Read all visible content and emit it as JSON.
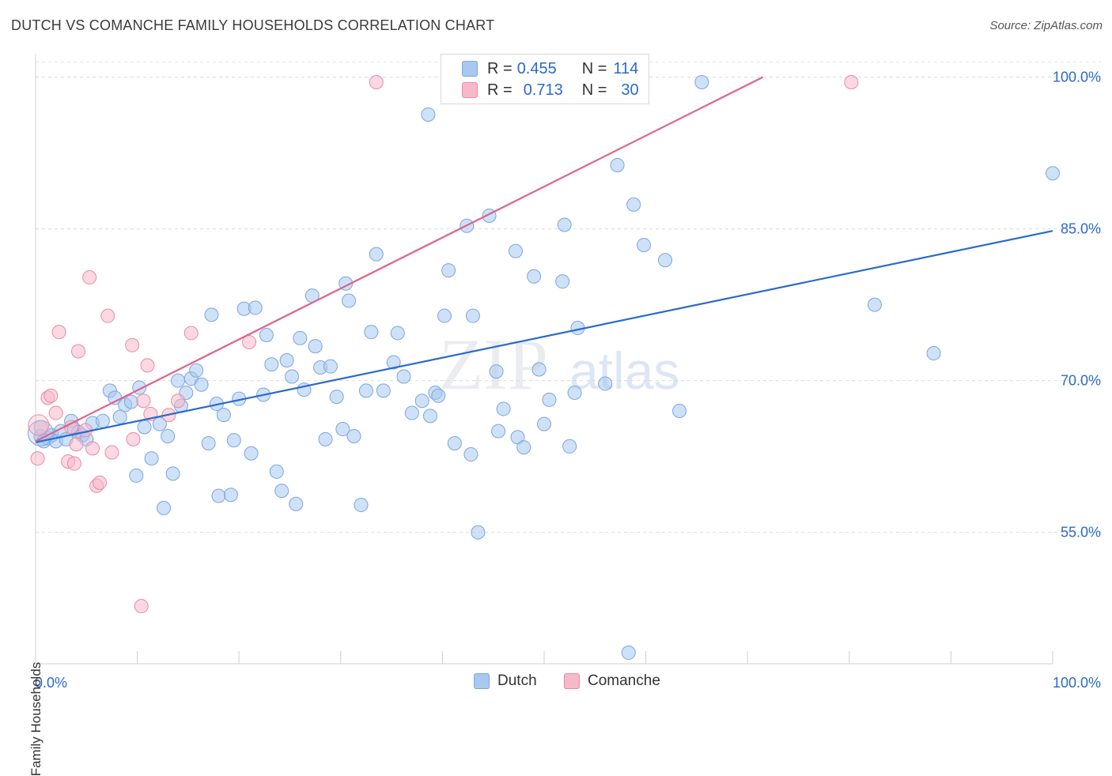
{
  "title": "DUTCH VS COMANCHE FAMILY HOUSEHOLDS CORRELATION CHART",
  "source": "Source: ZipAtlas.com",
  "watermark": {
    "zip": "ZIP",
    "atlas": "atlas"
  },
  "legend": {
    "rows": [
      {
        "r_label": "R = ",
        "r_value": "0.455",
        "n_label": "N = ",
        "n_value": "114",
        "color": "#a8c8f0",
        "border": "#7aa6de"
      },
      {
        "r_label": "R = ",
        "r_value": "0.713",
        "n_label": "N = ",
        "n_value": "30",
        "color": "#f7b8ca",
        "border": "#e98aa6"
      }
    ]
  },
  "bottom_legend": [
    {
      "label": "Dutch",
      "color": "#a8c8f0",
      "border": "#7aa6de"
    },
    {
      "label": "Comanche",
      "color": "#f7b8ca",
      "border": "#e98aa6"
    }
  ],
  "chart_data": {
    "type": "scatter",
    "title": "DUTCH VS COMANCHE FAMILY HOUSEHOLDS CORRELATION CHART",
    "xlabel": "",
    "ylabel": "Family Households",
    "xlim": [
      0,
      100
    ],
    "ylim": [
      42,
      102
    ],
    "x_tick_labels": [
      "0.0%",
      "100.0%"
    ],
    "y_ticks": [
      55,
      70,
      85,
      100
    ],
    "y_tick_labels": [
      "55.0%",
      "70.0%",
      "85.0%",
      "100.0%"
    ],
    "grid": true,
    "legend_position": "top-center",
    "series": [
      {
        "name": "Dutch",
        "color": "#a8c8f0",
        "stroke": "#7aa6de",
        "trend": {
          "x0": 0,
          "y0": 63.9,
          "x1": 100,
          "y1": 84.8,
          "color": "#2a6acb"
        },
        "points": [
          [
            0.5,
            64.5
          ],
          [
            0.8,
            64.0
          ],
          [
            1.2,
            64.3
          ],
          [
            1.6,
            64.6
          ],
          [
            2.0,
            64.0
          ],
          [
            2.5,
            65.0
          ],
          [
            3.0,
            64.2
          ],
          [
            3.5,
            66.0
          ],
          [
            3.8,
            65.2
          ],
          [
            4.2,
            64.9
          ],
          [
            4.6,
            64.6
          ],
          [
            5.0,
            64.2
          ],
          [
            5.6,
            65.8
          ],
          [
            6.6,
            66.0
          ],
          [
            7.3,
            69.0
          ],
          [
            7.8,
            68.3
          ],
          [
            8.3,
            66.4
          ],
          [
            8.8,
            67.6
          ],
          [
            9.4,
            67.9
          ],
          [
            9.9,
            60.6
          ],
          [
            10.2,
            69.3
          ],
          [
            10.7,
            65.4
          ],
          [
            11.4,
            62.3
          ],
          [
            12.2,
            65.7
          ],
          [
            12.6,
            57.4
          ],
          [
            13.0,
            64.5
          ],
          [
            13.5,
            60.8
          ],
          [
            14.0,
            70.0
          ],
          [
            14.3,
            67.5
          ],
          [
            14.8,
            68.8
          ],
          [
            15.3,
            70.2
          ],
          [
            15.8,
            71.0
          ],
          [
            16.3,
            69.6
          ],
          [
            17.0,
            63.8
          ],
          [
            17.3,
            76.5
          ],
          [
            17.8,
            67.7
          ],
          [
            18.5,
            66.6
          ],
          [
            18.0,
            58.6
          ],
          [
            19.2,
            58.7
          ],
          [
            19.5,
            64.1
          ],
          [
            20.0,
            68.2
          ],
          [
            20.5,
            77.1
          ],
          [
            21.2,
            62.8
          ],
          [
            21.6,
            77.2
          ],
          [
            22.4,
            68.6
          ],
          [
            22.7,
            74.5
          ],
          [
            23.2,
            71.6
          ],
          [
            23.7,
            61.0
          ],
          [
            24.2,
            59.1
          ],
          [
            24.7,
            72.0
          ],
          [
            25.2,
            70.4
          ],
          [
            25.6,
            57.8
          ],
          [
            26.0,
            74.2
          ],
          [
            26.4,
            69.1
          ],
          [
            27.2,
            78.4
          ],
          [
            27.5,
            73.4
          ],
          [
            28.0,
            71.3
          ],
          [
            28.5,
            64.2
          ],
          [
            29.0,
            71.4
          ],
          [
            29.6,
            68.4
          ],
          [
            30.2,
            65.2
          ],
          [
            30.5,
            79.6
          ],
          [
            30.8,
            77.9
          ],
          [
            31.3,
            64.5
          ],
          [
            32.0,
            57.7
          ],
          [
            32.5,
            69.0
          ],
          [
            33.0,
            74.8
          ],
          [
            33.5,
            82.5
          ],
          [
            34.2,
            69.0
          ],
          [
            35.2,
            71.8
          ],
          [
            35.6,
            74.7
          ],
          [
            36.2,
            70.4
          ],
          [
            37.0,
            66.8
          ],
          [
            38.0,
            68.0
          ],
          [
            38.6,
            96.3
          ],
          [
            38.8,
            66.5
          ],
          [
            39.3,
            68.8
          ],
          [
            39.6,
            68.5
          ],
          [
            40.2,
            76.4
          ],
          [
            40.6,
            80.9
          ],
          [
            41.2,
            63.8
          ],
          [
            42.4,
            85.3
          ],
          [
            43.0,
            76.4
          ],
          [
            42.8,
            62.7
          ],
          [
            43.5,
            55.0
          ],
          [
            44.6,
            86.3
          ],
          [
            45.3,
            70.9
          ],
          [
            45.5,
            65.0
          ],
          [
            46.0,
            67.2
          ],
          [
            47.2,
            82.8
          ],
          [
            47.4,
            64.4
          ],
          [
            48.0,
            63.4
          ],
          [
            49.0,
            80.3
          ],
          [
            49.5,
            71.1
          ],
          [
            50.0,
            65.7
          ],
          [
            50.5,
            68.1
          ],
          [
            51.8,
            79.8
          ],
          [
            52.0,
            85.4
          ],
          [
            52.5,
            63.5
          ],
          [
            53.0,
            68.8
          ],
          [
            53.3,
            75.2
          ],
          [
            56.0,
            69.7
          ],
          [
            57.2,
            91.3
          ],
          [
            58.3,
            43.1
          ],
          [
            58.8,
            87.4
          ],
          [
            59.8,
            83.4
          ],
          [
            61.9,
            81.9
          ],
          [
            63.3,
            67.0
          ],
          [
            65.5,
            99.5
          ],
          [
            82.5,
            77.5
          ],
          [
            88.3,
            72.7
          ],
          [
            100.0,
            90.5
          ]
        ]
      },
      {
        "name": "Comanche",
        "color": "#f7b8ca",
        "stroke": "#e98aa6",
        "trend": {
          "x0": 0,
          "y0": 64.0,
          "x1": 71.5,
          "y1": 100.0,
          "color": "#e0628a"
        },
        "points": [
          [
            0.2,
            62.3
          ],
          [
            0.5,
            65.4
          ],
          [
            1.2,
            68.3
          ],
          [
            1.5,
            68.5
          ],
          [
            2.0,
            66.8
          ],
          [
            2.3,
            74.8
          ],
          [
            3.2,
            62.0
          ],
          [
            3.5,
            65.4
          ],
          [
            3.8,
            61.8
          ],
          [
            4.0,
            63.7
          ],
          [
            4.2,
            72.9
          ],
          [
            4.9,
            65.1
          ],
          [
            5.3,
            80.2
          ],
          [
            5.6,
            63.3
          ],
          [
            6.0,
            59.6
          ],
          [
            6.3,
            59.9
          ],
          [
            7.1,
            76.4
          ],
          [
            7.5,
            62.9
          ],
          [
            9.5,
            73.5
          ],
          [
            9.6,
            64.2
          ],
          [
            10.4,
            47.7
          ],
          [
            10.6,
            68.0
          ],
          [
            11.0,
            71.5
          ],
          [
            11.3,
            66.7
          ],
          [
            13.1,
            66.6
          ],
          [
            14.0,
            68.0
          ],
          [
            15.3,
            74.7
          ],
          [
            21.0,
            73.8
          ],
          [
            33.5,
            99.5
          ],
          [
            80.2,
            99.5
          ]
        ]
      }
    ]
  }
}
